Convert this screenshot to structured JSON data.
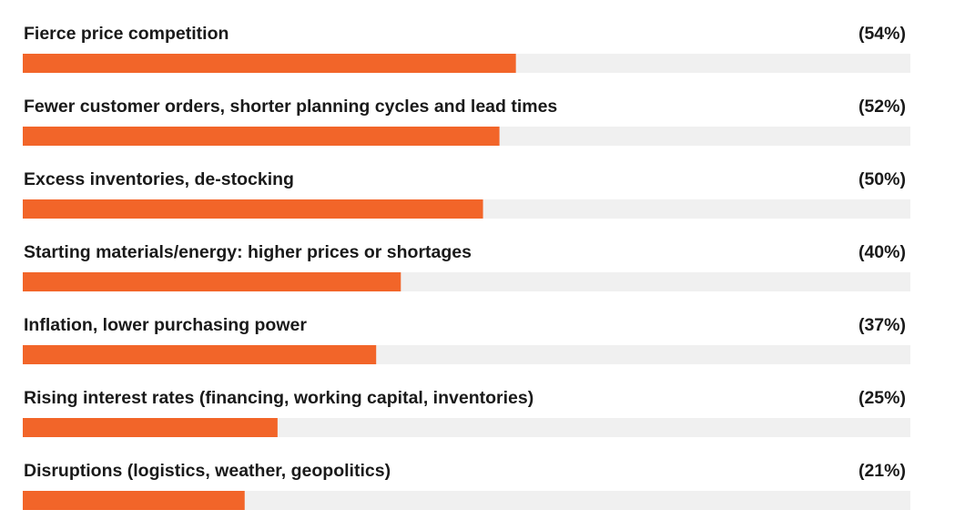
{
  "chart_data": {
    "type": "hbar",
    "categories": [
      "Fierce price competition",
      "Fewer customer orders, shorter planning cycles and lead times",
      "Excess inventories, de-stocking",
      "Starting materials/energy: higher prices or shortages",
      "Inflation, lower purchasing power",
      "Rising interest rates (financing, working capital, inventories)",
      "Disruptions (logistics, weather, geopolitics)"
    ],
    "values": [
      54,
      52,
      50,
      40,
      37,
      25,
      21
    ],
    "value_labels": [
      "(54%)",
      "(52%)",
      "(50%)",
      "(40%)",
      "(37%)",
      "(25%)",
      "(21%)"
    ],
    "color": "#f26529",
    "track_color": "#f0f0f0",
    "xlim": [
      -6,
      102
    ]
  }
}
